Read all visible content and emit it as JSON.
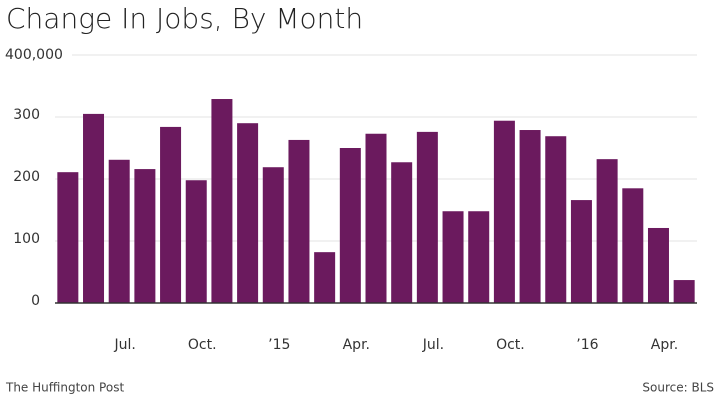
{
  "chart_data": {
    "type": "bar",
    "title": "Change In Jobs, By Month",
    "categories": [
      null,
      null,
      "Jul.",
      null,
      null,
      "Oct.",
      null,
      null,
      "’15",
      null,
      null,
      "Apr.",
      null,
      null,
      "Jul.",
      null,
      null,
      "Oct.",
      null,
      null,
      "’16",
      null,
      null,
      "Apr.",
      null
    ],
    "values": [
      211,
      305,
      231,
      216,
      284,
      198,
      329,
      290,
      219,
      263,
      82,
      250,
      273,
      227,
      276,
      148,
      148,
      294,
      279,
      269,
      166,
      232,
      185,
      121,
      37
    ],
    "color": "#6b1a5e",
    "ylim": [
      0,
      400
    ],
    "yticks": [
      0,
      100,
      200,
      300,
      {
        "value": 400,
        "label": "400,000"
      }
    ],
    "grid": true,
    "source": "Source: BLS",
    "publisher": "The Huffington Post"
  }
}
